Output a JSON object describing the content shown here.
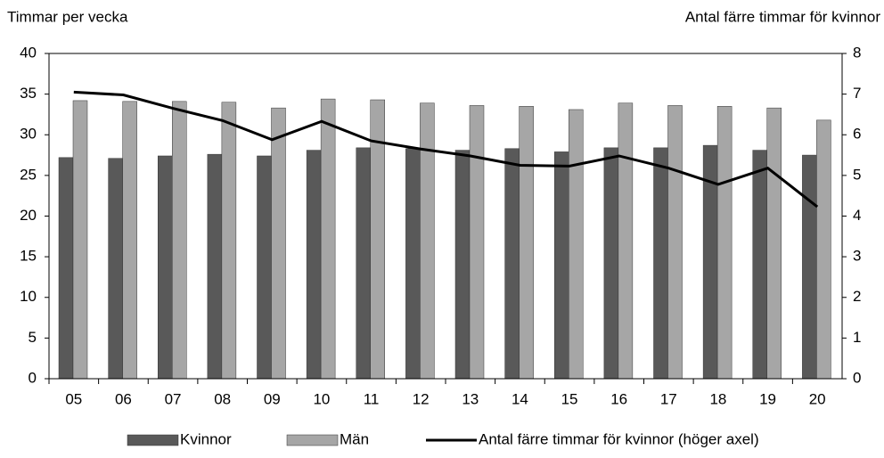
{
  "chart_data": {
    "type": "bar-line",
    "y_title": "Timmar per vecka",
    "y2_title": "Antal färre timmar för kvinnor",
    "categories": [
      "05",
      "06",
      "07",
      "08",
      "09",
      "10",
      "11",
      "12",
      "13",
      "14",
      "15",
      "16",
      "17",
      "18",
      "19",
      "20"
    ],
    "series": [
      {
        "name": "Kvinnor",
        "type": "bar",
        "color": "#595959",
        "values": [
          27.2,
          27.1,
          27.4,
          27.6,
          27.4,
          28.1,
          28.4,
          28.3,
          28.1,
          28.3,
          27.9,
          28.4,
          28.4,
          28.7,
          28.1,
          27.5
        ]
      },
      {
        "name": "Män",
        "type": "bar",
        "color": "#a6a6a6",
        "values": [
          34.2,
          34.1,
          34.1,
          34.0,
          33.3,
          34.4,
          34.3,
          33.9,
          33.6,
          33.5,
          33.1,
          33.9,
          33.6,
          33.5,
          33.3,
          31.8
        ]
      },
      {
        "name": "Antal färre timmar för kvinnor (höger axel)",
        "type": "line",
        "axis": "y2",
        "color": "#000000",
        "values": [
          7.05,
          6.98,
          6.65,
          6.35,
          5.88,
          6.33,
          5.85,
          5.65,
          5.48,
          5.25,
          5.23,
          5.48,
          5.18,
          4.78,
          5.18,
          4.23
        ]
      }
    ],
    "ylim": [
      0,
      40
    ],
    "yticks": [
      0,
      5,
      10,
      15,
      20,
      25,
      30,
      35,
      40
    ],
    "y2lim": [
      0,
      8
    ],
    "y2ticks": [
      0,
      1,
      2,
      3,
      4,
      5,
      6,
      7,
      8
    ],
    "grid": false,
    "legend": "bottom"
  }
}
